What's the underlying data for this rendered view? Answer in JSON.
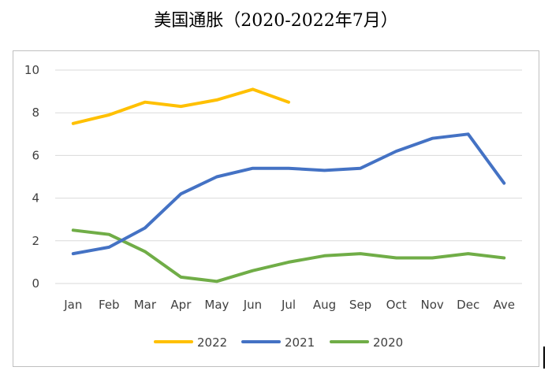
{
  "chart_data": {
    "type": "line",
    "title": "美国通胀（2020-2022年7月）",
    "xlabel": "",
    "ylabel": "",
    "categories": [
      "Jan",
      "Feb",
      "Mar",
      "Apr",
      "May",
      "Jun",
      "Jul",
      "Aug",
      "Sep",
      "Oct",
      "Nov",
      "Dec",
      "Ave"
    ],
    "ylim": [
      0,
      10
    ],
    "yticks": [
      0,
      2,
      4,
      6,
      8,
      10
    ],
    "grid": true,
    "legend_position": "bottom",
    "series": [
      {
        "name": "2022",
        "color": "#FFC000",
        "values": [
          7.5,
          7.9,
          8.5,
          8.3,
          8.6,
          9.1,
          8.5,
          null,
          null,
          null,
          null,
          null,
          null
        ]
      },
      {
        "name": "2021",
        "color": "#4472C4",
        "values": [
          1.4,
          1.7,
          2.6,
          4.2,
          5.0,
          5.4,
          5.4,
          5.3,
          5.4,
          6.2,
          6.8,
          7.0,
          4.7
        ]
      },
      {
        "name": "2020",
        "color": "#70AD47",
        "values": [
          2.5,
          2.3,
          1.5,
          0.3,
          0.1,
          0.6,
          1.0,
          1.3,
          1.4,
          1.2,
          1.2,
          1.4,
          1.2
        ]
      }
    ]
  }
}
